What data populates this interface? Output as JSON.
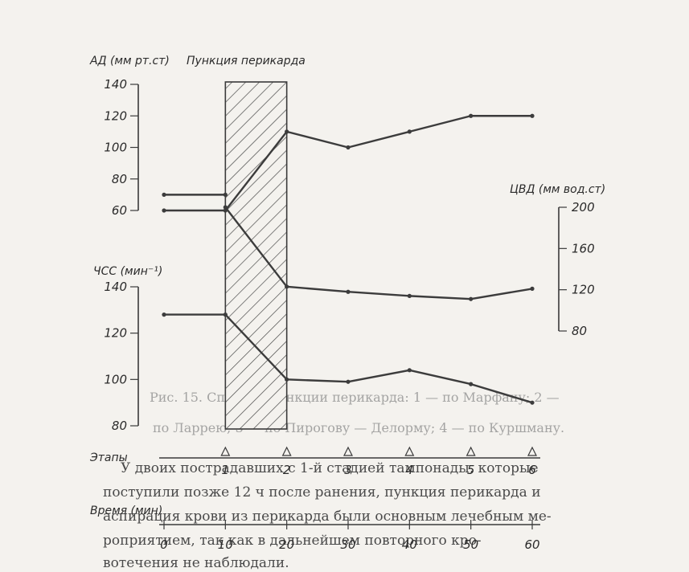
{
  "chart_data": {
    "type": "line",
    "title": "",
    "procedure_label": "Пункция перикарда",
    "procedure_interval": [
      10,
      20
    ],
    "x_axis": {
      "label": "Время (мин)",
      "ticks": [
        0,
        10,
        20,
        30,
        40,
        50,
        60
      ],
      "tick_labels": [
        "0",
        "10",
        "20",
        "30",
        "40",
        "50",
        "60"
      ],
      "range": [
        0,
        60
      ]
    },
    "stages": {
      "label": "Этапы",
      "labels": [
        "1",
        "2",
        "3",
        "4",
        "5",
        "6"
      ],
      "x": [
        10,
        20,
        30,
        40,
        50,
        60
      ]
    },
    "panels": [
      {
        "id": "bp",
        "ylabel": "АД (мм рт.ст)",
        "axis_side": "left",
        "ylim": [
          60,
          140
        ],
        "ticks": [
          60,
          80,
          100,
          120,
          140
        ],
        "series": [
          {
            "x": [
              0,
              10,
              20,
              30,
              40,
              50,
              60
            ],
            "y": [
              60,
              60,
              110,
              100,
              110,
              120,
              120
            ]
          },
          {
            "x": [
              0,
              10
            ],
            "y": [
              70,
              70
            ]
          }
        ]
      },
      {
        "id": "hr",
        "ylabel": "ЧСС (мин⁻¹)",
        "axis_side": "left",
        "ylim": [
          80,
          140
        ],
        "ticks": [
          80,
          100,
          120,
          140
        ],
        "series": [
          {
            "x": [
              0,
              10,
              20,
              30,
              40,
              50,
              60
            ],
            "y": [
              128,
              128,
              100,
              99,
              104,
              98,
              90
            ]
          }
        ]
      },
      {
        "id": "cvp",
        "ylabel": "ЦВД (мм вод.ст)",
        "axis_side": "right",
        "ylim": [
          80,
          200
        ],
        "ticks": [
          80,
          120,
          160,
          200
        ],
        "series": [
          {
            "x": [
              10,
              20,
              30,
              40,
              50,
              60
            ],
            "y": [
              200,
              123,
              118,
              114,
              111,
              121
            ]
          }
        ]
      }
    ]
  },
  "background_text": {
    "caption_line1": "Рис. 15. Способы пункции перикарда: 1 — по Марфану; 2 —",
    "caption_line2": "по Ларрею; 3 — по Пирогову — Делорму; 4 — по Куршману.",
    "body_line1": "У двоих пострадавших с 1-й стадией тампонады, которые",
    "body_line2": "поступили позже 12 ч после ранения, пункция перикарда и",
    "body_line3": "аспирация крови из перикарда были основным лечебным ме-",
    "body_line4": "роприятием, так как в дальнейшем повторного кро-",
    "body_line5": "вотечения не наблюдали."
  }
}
